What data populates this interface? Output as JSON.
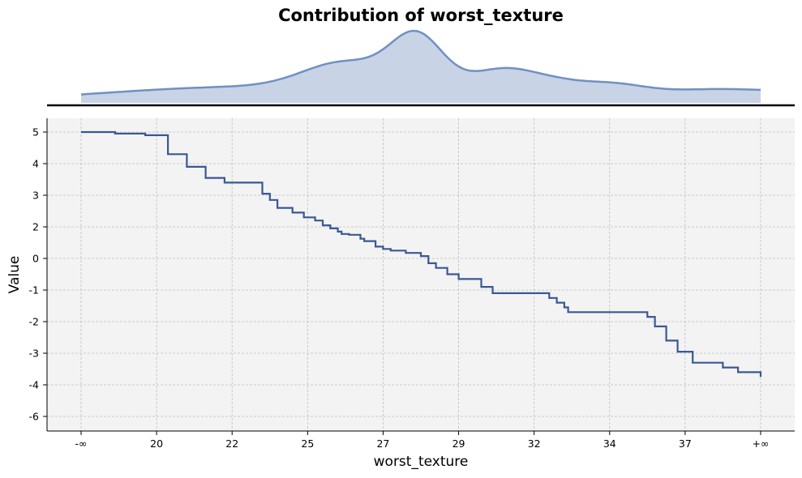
{
  "chart_data": {
    "type": "line",
    "title": "Contribution of worst_texture",
    "xlabel": "worst_texture",
    "ylabel": "Value",
    "x_tick_labels": [
      "-∞",
      "20",
      "22",
      "25",
      "27",
      "29",
      "32",
      "34",
      "37",
      "+∞"
    ],
    "y_ticks": [
      5,
      4,
      3,
      2,
      0,
      -1,
      -2,
      -3,
      -4,
      -6
    ],
    "ylim": [
      -6.4,
      5.35
    ],
    "grid": true,
    "line_color": "#3a5894",
    "plot_background": "#f3f3f3",
    "density_fill": "#c8d3e6",
    "density_line": "#7090c4",
    "series": [
      {
        "x": [
          0,
          0.45,
          0.85,
          1.15,
          1.4,
          1.65,
          1.9,
          2.4,
          2.5,
          2.6,
          2.8,
          2.95,
          3.1,
          3.2,
          3.3,
          3.4,
          3.45,
          3.55,
          3.7,
          3.75,
          3.9,
          4.0,
          4.1,
          4.3,
          4.5,
          4.6,
          4.7,
          4.85,
          5.0,
          5.3,
          5.45,
          6.2,
          6.3,
          6.4,
          6.45,
          7.5,
          7.6,
          7.75,
          7.9,
          8.1,
          8.5,
          8.7,
          9.0
        ],
        "y": [
          5.0,
          4.95,
          4.9,
          4.3,
          3.9,
          3.55,
          3.4,
          3.05,
          2.85,
          2.6,
          2.45,
          2.3,
          2.2,
          2.05,
          1.9,
          1.7,
          1.55,
          1.5,
          1.25,
          1.1,
          0.75,
          0.6,
          0.5,
          0.35,
          0.15,
          -0.15,
          -0.3,
          -0.5,
          -0.65,
          -0.9,
          -1.1,
          -1.25,
          -1.4,
          -1.55,
          -1.7,
          -1.85,
          -2.15,
          -2.6,
          -2.95,
          -3.3,
          -3.45,
          -3.6,
          -3.75
        ]
      }
    ]
  }
}
